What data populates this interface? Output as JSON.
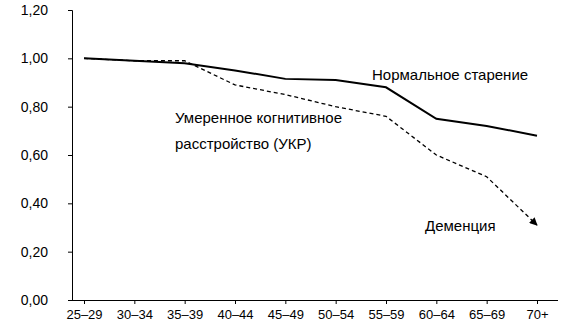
{
  "chart_data": {
    "type": "line",
    "categories": [
      "25–29",
      "30–34",
      "35–39",
      "40–44",
      "45–49",
      "50–54",
      "55–59",
      "60–64",
      "65–69",
      "70+"
    ],
    "ylim": [
      0,
      1.2
    ],
    "yticks": [
      {
        "value": 0,
        "label": "0,00"
      },
      {
        "value": 0.2,
        "label": "0,20"
      },
      {
        "value": 0.4,
        "label": "0,40"
      },
      {
        "value": 0.6,
        "label": "0,60"
      },
      {
        "value": 0.8,
        "label": "0,80"
      },
      {
        "value": 1.0,
        "label": "1,00"
      },
      {
        "value": 1.2,
        "label": "1,20"
      }
    ],
    "grid": false,
    "series": [
      {
        "name": "Нормальное старение",
        "color": "#000000",
        "line_style": "solid",
        "values": [
          1.0,
          0.99,
          0.98,
          0.95,
          0.915,
          0.91,
          0.88,
          0.75,
          0.72,
          0.68
        ]
      },
      {
        "name": "Деменция",
        "color": "#000000",
        "line_style": "dashed",
        "marker": "arrow",
        "values": [
          1.0,
          0.99,
          0.99,
          0.89,
          0.85,
          0.8,
          0.76,
          0.6,
          0.51,
          0.31
        ]
      }
    ],
    "annotations": [
      "Умеренное когнитивное",
      "расстройство (УКР)"
    ]
  }
}
